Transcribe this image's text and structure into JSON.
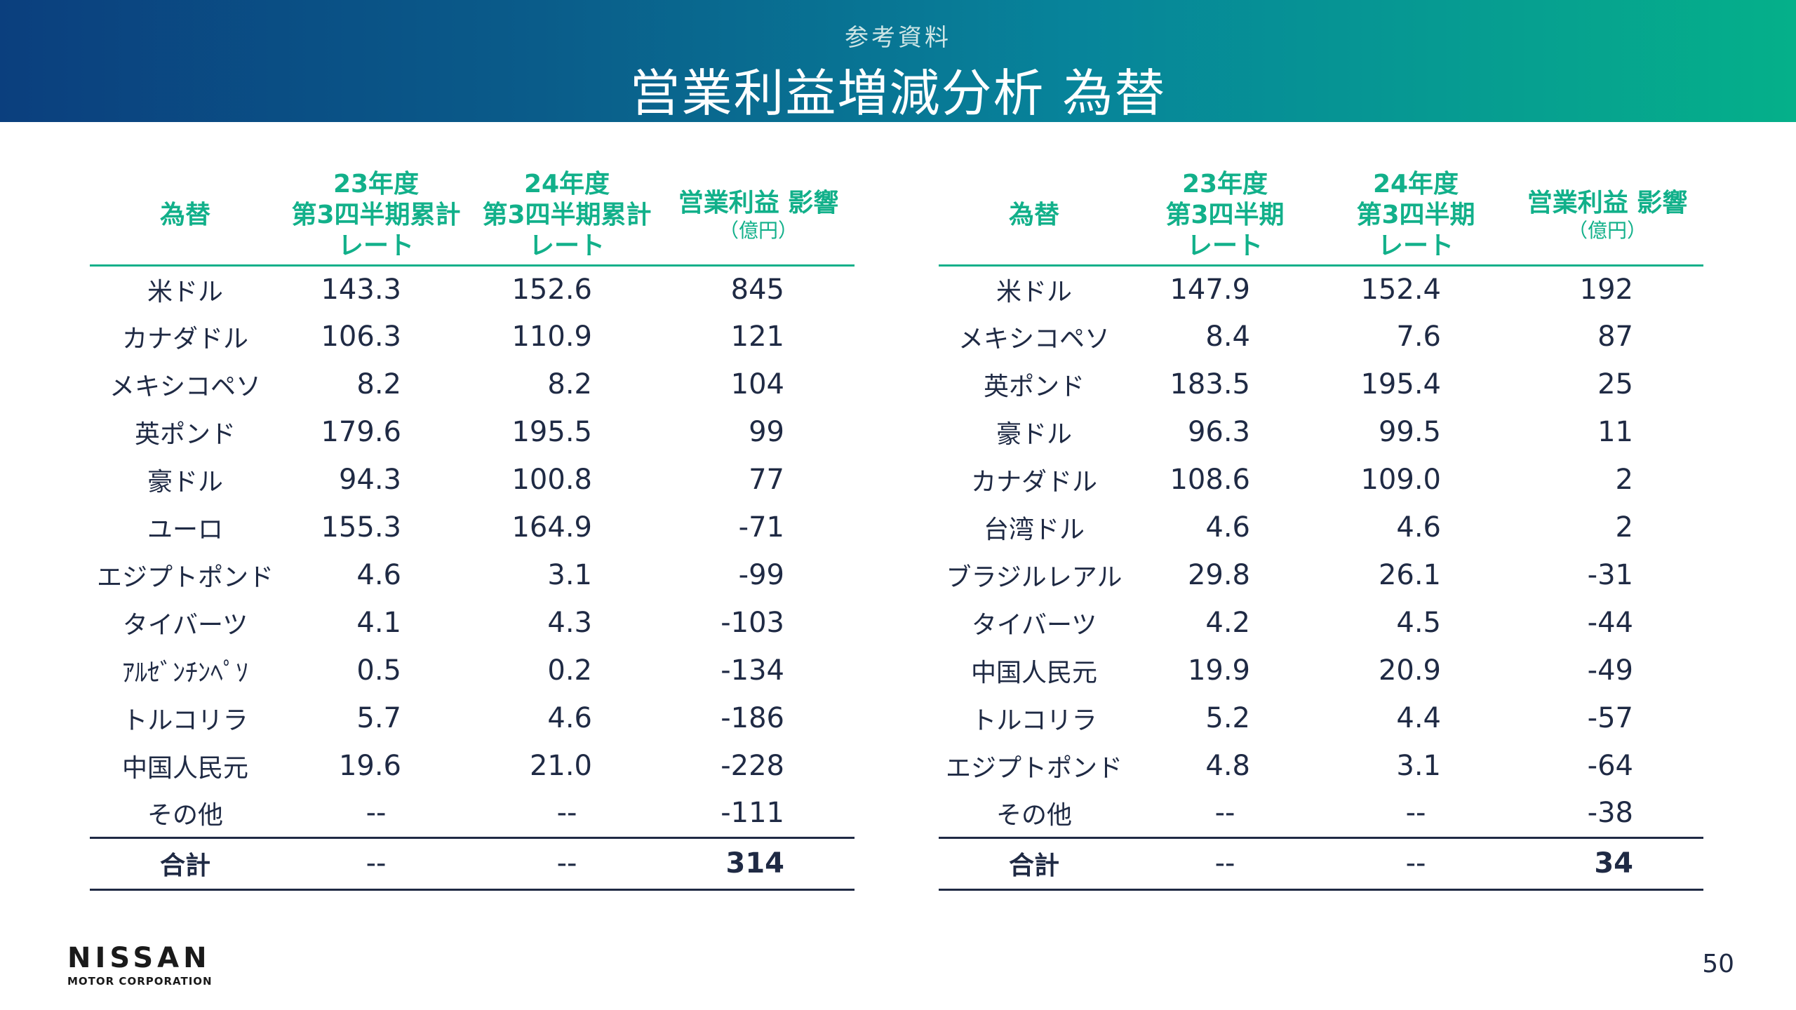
{
  "header": {
    "subtitle": "参考資料",
    "title": "営業利益増減分析 為替"
  },
  "left_table": {
    "headers": {
      "currency": "為替",
      "fy23": [
        "23年度",
        "第3四半期累計",
        "レート"
      ],
      "fy24": [
        "24年度",
        "第3四半期累計",
        "レート"
      ],
      "impact": "営業利益 影響",
      "impact_unit": "（億円）"
    },
    "rows": [
      {
        "currency": "米ドル",
        "fy23": "143.3",
        "fy24": "152.6",
        "impact": "845"
      },
      {
        "currency": "カナダドル",
        "fy23": "106.3",
        "fy24": "110.9",
        "impact": "121"
      },
      {
        "currency": "メキシコペソ",
        "fy23": "8.2",
        "fy24": "8.2",
        "impact": "104"
      },
      {
        "currency": "英ポンド",
        "fy23": "179.6",
        "fy24": "195.5",
        "impact": "99"
      },
      {
        "currency": "豪ドル",
        "fy23": "94.3",
        "fy24": "100.8",
        "impact": "77"
      },
      {
        "currency": "ユーロ",
        "fy23": "155.3",
        "fy24": "164.9",
        "impact": "-71"
      },
      {
        "currency": "エジプトポンド",
        "fy23": "4.6",
        "fy24": "3.1",
        "impact": "-99"
      },
      {
        "currency": "タイバーツ",
        "fy23": "4.1",
        "fy24": "4.3",
        "impact": "-103"
      },
      {
        "currency": "ｱﾙｾﾞﾝﾁﾝﾍﾟｿ",
        "fy23": "0.5",
        "fy24": "0.2",
        "impact": "-134"
      },
      {
        "currency": "トルコリラ",
        "fy23": "5.7",
        "fy24": "4.6",
        "impact": "-186"
      },
      {
        "currency": "中国人民元",
        "fy23": "19.6",
        "fy24": "21.0",
        "impact": "-228"
      },
      {
        "currency": "その他",
        "fy23": "--",
        "fy24": "--",
        "impact": "-111"
      }
    ],
    "total": {
      "currency": "合計",
      "fy23": "--",
      "fy24": "--",
      "impact": "314"
    }
  },
  "right_table": {
    "headers": {
      "currency": "為替",
      "fy23": [
        "23年度",
        "第3四半期",
        "レート"
      ],
      "fy24": [
        "24年度",
        "第3四半期",
        "レート"
      ],
      "impact": "営業利益 影響",
      "impact_unit": "（億円）"
    },
    "rows": [
      {
        "currency": "米ドル",
        "fy23": "147.9",
        "fy24": "152.4",
        "impact": "192"
      },
      {
        "currency": "メキシコペソ",
        "fy23": "8.4",
        "fy24": "7.6",
        "impact": "87"
      },
      {
        "currency": "英ポンド",
        "fy23": "183.5",
        "fy24": "195.4",
        "impact": "25"
      },
      {
        "currency": "豪ドル",
        "fy23": "96.3",
        "fy24": "99.5",
        "impact": "11"
      },
      {
        "currency": "カナダドル",
        "fy23": "108.6",
        "fy24": "109.0",
        "impact": "2"
      },
      {
        "currency": "台湾ドル",
        "fy23": "4.6",
        "fy24": "4.6",
        "impact": "2"
      },
      {
        "currency": "ブラジルレアル",
        "fy23": "29.8",
        "fy24": "26.1",
        "impact": "-31"
      },
      {
        "currency": "タイバーツ",
        "fy23": "4.2",
        "fy24": "4.5",
        "impact": "-44"
      },
      {
        "currency": "中国人民元",
        "fy23": "19.9",
        "fy24": "20.9",
        "impact": "-49"
      },
      {
        "currency": "トルコリラ",
        "fy23": "5.2",
        "fy24": "4.4",
        "impact": "-57"
      },
      {
        "currency": "エジプトポンド",
        "fy23": "4.8",
        "fy24": "3.1",
        "impact": "-64"
      },
      {
        "currency": "その他",
        "fy23": "--",
        "fy24": "--",
        "impact": "-38"
      }
    ],
    "total": {
      "currency": "合計",
      "fy23": "--",
      "fy24": "--",
      "impact": "34"
    }
  },
  "footer": {
    "logo_brand": "NISSAN",
    "logo_sub": "MOTOR CORPORATION",
    "page_number": "50"
  },
  "colors": {
    "accent": "#12b08a",
    "header_start": "#0b3f7e",
    "header_end": "#05b08a",
    "text": "#1f2a44"
  }
}
